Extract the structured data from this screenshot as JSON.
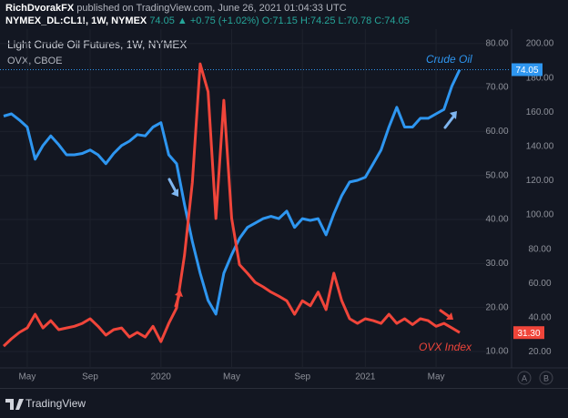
{
  "header": {
    "author": "RichDvorakFX",
    "published": "published on TradingView.com, June 26, 2021 01:04:33 UTC",
    "symbol": "NYMEX_DL:CL1!, 1W, NYMEX",
    "last": "74.05",
    "change": "▲ +0.75 (+1.02%)",
    "ohlc": "O:71.15 H:74.25 L:70.78 C:74.05"
  },
  "footer": "TradingView",
  "axis_buttons": [
    "A",
    "B"
  ],
  "chart_data": {
    "type": "line",
    "categories": [
      null,
      null,
      null,
      "May",
      null,
      null,
      null,
      null,
      null,
      null,
      null,
      "Sep",
      null,
      null,
      null,
      null,
      null,
      null,
      null,
      null,
      "2020",
      null,
      null,
      null,
      null,
      null,
      null,
      null,
      null,
      "May",
      null,
      null,
      null,
      null,
      null,
      null,
      null,
      null,
      "Sep",
      null,
      null,
      null,
      null,
      null,
      null,
      null,
      "2021",
      null,
      null,
      null,
      null,
      null,
      null,
      null,
      null,
      "May",
      null,
      null,
      null
    ],
    "series": [
      {
        "name": "Light Crude Oil Futures, 1W, NYMEX",
        "color": "#2e96f0",
        "values": [
          63.5,
          64,
          62.6,
          61,
          53.7,
          56.8,
          59,
          57,
          54.7,
          54.7,
          55,
          55.8,
          54.7,
          52.7,
          55,
          56.8,
          57.8,
          59.3,
          59,
          61,
          62,
          54.7,
          52.7,
          43.4,
          35,
          27.8,
          21.6,
          18.5,
          27.8,
          32,
          35.7,
          38.2,
          39.2,
          40.2,
          40.7,
          40.2,
          41.9,
          38.2,
          40.2,
          39.8,
          40.2,
          36.5,
          41.3,
          45.4,
          48.5,
          48.9,
          49.6,
          52.7,
          55.8,
          61,
          65.5,
          61,
          61,
          63,
          63,
          64,
          65,
          70.3,
          74.05
        ],
        "value_labels": [
          null,
          null,
          null,
          null,
          null,
          null,
          null,
          null,
          null,
          null,
          null,
          null,
          null,
          null,
          null,
          null,
          null,
          null,
          null,
          null,
          null,
          null,
          null,
          null,
          null,
          null,
          null,
          null,
          null,
          null,
          null,
          null,
          null,
          null,
          null,
          null,
          null,
          null,
          null,
          null,
          null,
          null,
          null,
          null,
          null,
          null,
          null,
          null,
          null,
          null,
          null,
          null,
          null,
          null,
          null,
          null,
          null,
          null,
          "74.05"
        ]
      },
      {
        "name": "OVX, CBOE",
        "color": "#f0453a",
        "axis": "y2",
        "values": [
          23.4,
          27.7,
          31.4,
          34,
          42,
          34,
          38.3,
          33,
          34,
          35,
          36.7,
          39.4,
          35,
          29.8,
          33,
          34,
          28.7,
          31.4,
          28.7,
          35,
          26,
          36.7,
          45.7,
          76.6,
          119,
          188.3,
          172,
          97.9,
          167,
          98,
          71,
          66,
          60.6,
          58,
          55,
          52.6,
          49.9,
          42,
          49.9,
          47,
          55,
          44.7,
          66,
          50,
          39.4,
          36.7,
          39.4,
          38.3,
          36.7,
          42,
          36.7,
          39.4,
          36,
          39.4,
          38.3,
          35,
          36.7,
          34,
          31.3
        ],
        "value_labels": [
          null,
          null,
          null,
          null,
          null,
          null,
          null,
          null,
          null,
          null,
          null,
          null,
          null,
          null,
          null,
          null,
          null,
          null,
          null,
          null,
          null,
          null,
          null,
          null,
          null,
          null,
          null,
          null,
          null,
          null,
          null,
          null,
          null,
          null,
          null,
          null,
          null,
          null,
          null,
          null,
          null,
          null,
          null,
          null,
          null,
          null,
          null,
          null,
          null,
          null,
          null,
          null,
          null,
          null,
          null,
          null,
          null,
          null,
          "31.30"
        ]
      }
    ],
    "annotations": [
      "Crude Oil",
      "OVX Index"
    ],
    "ylim": [
      7.1,
      81.6
    ],
    "yticks": [
      {
        "value": 10,
        "label": "10.00"
      },
      {
        "value": 20,
        "label": "20.00"
      },
      {
        "value": 30,
        "label": "30.00"
      },
      {
        "value": 40,
        "label": "40.00"
      },
      {
        "value": 50,
        "label": "50.00"
      },
      {
        "value": 60,
        "label": "60.00"
      },
      {
        "value": 70,
        "label": "70.00"
      },
      {
        "value": 80,
        "label": "80.00"
      }
    ],
    "y2lim": [
      12.8,
      204.3
    ],
    "y2ticks": [
      {
        "value": 20,
        "label": "20.00"
      },
      {
        "value": 40,
        "label": "40.00"
      },
      {
        "value": 60,
        "label": "60.00"
      },
      {
        "value": 80,
        "label": "80.00"
      },
      {
        "value": 100,
        "label": "100.00"
      },
      {
        "value": 120,
        "label": "120.00"
      },
      {
        "value": 140,
        "label": "140.00"
      },
      {
        "value": 160,
        "label": "160.00"
      },
      {
        "value": 180,
        "label": "180.00"
      },
      {
        "value": 200,
        "label": "200.00"
      }
    ],
    "grid": true
  }
}
